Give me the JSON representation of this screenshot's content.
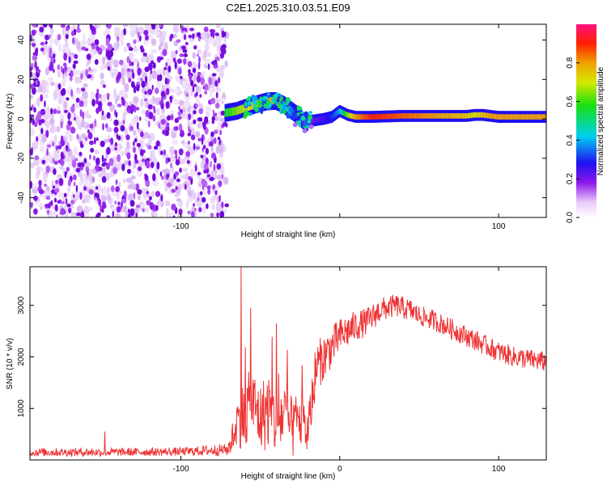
{
  "title": "C2E1.2025.310.03.51.E09",
  "colors": {
    "snr_line": "#ee3333",
    "axis": "#000000",
    "background": "#ffffff"
  },
  "chart_data": [
    {
      "type": "heatmap",
      "name": "spectrogram",
      "xlabel": "Height of straight line (km)",
      "ylabel": "Frequency (Hz)",
      "xlim": [
        -195,
        130
      ],
      "ylim": [
        -50,
        48
      ],
      "xticks": [
        -100,
        0,
        100
      ],
      "xtick_labels": [
        "-100",
        "",
        "100"
      ],
      "yticks": [
        -40,
        -20,
        0,
        20,
        40
      ],
      "ytick_labels": [
        "-40",
        "-20",
        "0",
        "20",
        "40"
      ],
      "noise_region_x": [
        -195,
        -71
      ],
      "ridge": {
        "x": [
          -72,
          -65,
          -58,
          -50,
          -45,
          -40,
          -35,
          -30,
          -25,
          -22,
          -18,
          -10,
          -5,
          0,
          5,
          10,
          20,
          40,
          60,
          80,
          85,
          90,
          95,
          100,
          130
        ],
        "freq": [
          3,
          4,
          6,
          8,
          9,
          9,
          7,
          4,
          1,
          -2,
          -1,
          0,
          1,
          4,
          2,
          1,
          1,
          1.5,
          1.5,
          1.5,
          2,
          2,
          1.5,
          1,
          1
        ],
        "amp": [
          0.55,
          0.65,
          0.7,
          0.75,
          0.8,
          0.7,
          0.5,
          0.35,
          0.25,
          0.2,
          0.2,
          0.25,
          0.3,
          0.4,
          0.65,
          0.8,
          0.9,
          0.85,
          0.8,
          0.75,
          0.7,
          0.75,
          0.8,
          0.8,
          0.8
        ]
      },
      "colorbar": {
        "label": "Normalized spectral amplitude",
        "range": [
          0,
          1
        ],
        "ticks": [
          0.0,
          0.2,
          0.4,
          0.6,
          0.8
        ],
        "tick_labels": [
          "0.0",
          "0.2",
          "0.4",
          "0.6",
          "0.8"
        ]
      }
    },
    {
      "type": "line",
      "name": "snr",
      "xlabel": "Height of straight line (km)",
      "ylabel": "SNR (10 * v/v)",
      "xlim": [
        -195,
        130
      ],
      "ylim": [
        0,
        3750
      ],
      "xticks": [
        -100,
        0,
        100
      ],
      "xtick_labels": [
        "-100",
        "0",
        "100"
      ],
      "yticks": [
        1000,
        2000,
        3000
      ],
      "ytick_labels": [
        "1000",
        "2000",
        "3000"
      ],
      "envelope": {
        "x": [
          -195,
          -150,
          -100,
          -70,
          -65,
          -60,
          -55,
          -50,
          -45,
          -40,
          -35,
          -30,
          -25,
          -20,
          -15,
          -10,
          -5,
          0,
          5,
          10,
          15,
          20,
          25,
          30,
          35,
          40,
          45,
          50,
          60,
          70,
          80,
          90,
          100,
          110,
          120,
          130
        ],
        "mean": [
          150,
          150,
          160,
          200,
          700,
          900,
          1100,
          800,
          1000,
          700,
          900,
          600,
          800,
          500,
          1800,
          2000,
          2200,
          2400,
          2500,
          2600,
          2650,
          2750,
          2900,
          2950,
          3000,
          2950,
          2900,
          2800,
          2700,
          2550,
          2400,
          2250,
          2100,
          2000,
          1950,
          1900
        ],
        "spread": [
          80,
          80,
          80,
          120,
          450,
          700,
          700,
          700,
          800,
          650,
          700,
          600,
          600,
          450,
          500,
          450,
          400,
          350,
          330,
          300,
          280,
          260,
          250,
          230,
          220,
          220,
          220,
          200,
          200,
          200,
          200,
          200,
          200,
          200,
          200,
          200
        ]
      },
      "peaks": [
        {
          "x": -62,
          "y": 3750
        },
        {
          "x": -56,
          "y": 2950
        },
        {
          "x": -40,
          "y": 2650
        },
        {
          "x": -148,
          "y": 550
        }
      ]
    }
  ]
}
